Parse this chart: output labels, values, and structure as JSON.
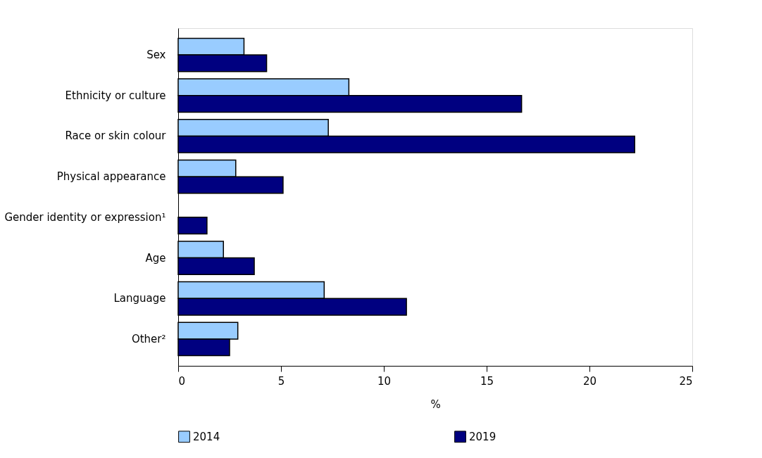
{
  "chart_data": {
    "type": "bar",
    "orientation": "horizontal",
    "xlabel": "%",
    "categories": [
      "Sex",
      "Ethnicity or culture",
      "Race or skin colour",
      "Physical appearance",
      "Gender identity or expression¹",
      "Age",
      "Language",
      "Other²"
    ],
    "series": [
      {
        "name": "2014",
        "color": "#99ccff",
        "values": [
          3.2,
          8.3,
          7.3,
          2.8,
          null,
          2.2,
          7.1,
          2.9
        ]
      },
      {
        "name": "2019",
        "color": "#000080",
        "values": [
          4.3,
          16.7,
          22.2,
          5.1,
          1.4,
          3.7,
          11.1,
          2.5
        ]
      }
    ],
    "xlim": [
      0,
      25
    ],
    "xticks": [
      0,
      5,
      10,
      15,
      20,
      25
    ],
    "grid": false,
    "legend": "bottom"
  }
}
